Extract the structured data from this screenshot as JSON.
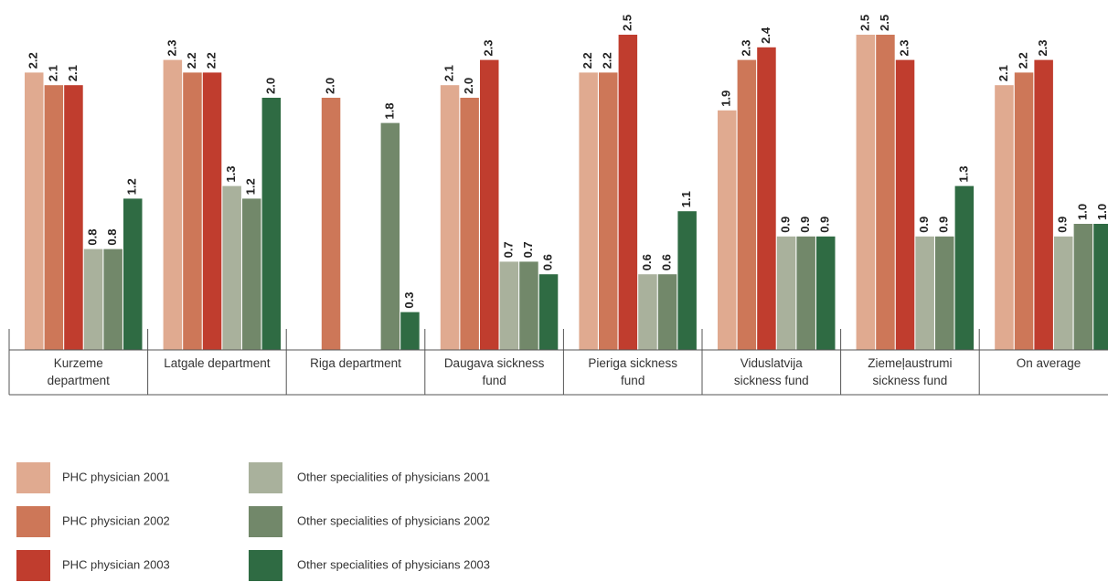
{
  "chart_data": {
    "type": "bar",
    "categories": [
      "Kurzeme department",
      "Latgale department",
      "Riga department",
      "Daugava sickness fund",
      "Pieriga sickness fund",
      "Viduslatvija sickness fund",
      "Ziemeļaustrumi sickness fund",
      "On average"
    ],
    "ylim": [
      0,
      2.5
    ],
    "series": [
      {
        "name": "PHC physician 2001",
        "color": "#e0aa90",
        "values": [
          2.2,
          2.3,
          null,
          2.1,
          2.2,
          1.9,
          2.5,
          2.1
        ],
        "value_labels": [
          "2.2",
          "2.3",
          null,
          "2.1",
          "2.2",
          "1.9",
          "2.5",
          "2.1"
        ]
      },
      {
        "name": "PHC physician 2002",
        "color": "#cd7758",
        "values": [
          2.1,
          2.2,
          2.0,
          2.0,
          2.2,
          2.3,
          2.5,
          2.2
        ],
        "value_labels": [
          "2.1",
          "2.2",
          "2.0",
          "2.0",
          "2.2",
          "2.3",
          "2.5",
          "2.2"
        ]
      },
      {
        "name": "PHC physician 2003",
        "color": "#c03d2e",
        "values": [
          2.1,
          2.2,
          null,
          2.3,
          2.5,
          2.4,
          2.3,
          2.3
        ],
        "value_labels": [
          "2.1",
          "2.2",
          null,
          "2.3",
          "2.5",
          "2.4",
          "2.3",
          "2.3"
        ]
      },
      {
        "name": "Other specialities of physicians 2001",
        "color": "#a9b19c",
        "values": [
          0.8,
          1.3,
          null,
          0.7,
          0.6,
          0.9,
          0.9,
          0.9
        ],
        "value_labels": [
          "0.8",
          "1.3",
          null,
          "0.7",
          "0.6",
          "0.9",
          "0.9",
          "0.9"
        ]
      },
      {
        "name": "Other specialities of physicians 2002",
        "color": "#72886a",
        "values": [
          0.8,
          1.2,
          1.8,
          0.7,
          0.6,
          0.9,
          0.9,
          1.0
        ],
        "value_labels": [
          "0.8",
          "1.2",
          "1.8",
          "0.7",
          "0.6",
          "0.9",
          "0.9",
          "1.0"
        ]
      },
      {
        "name": "Other specialities of physicians 2003",
        "color": "#2f6b43",
        "values": [
          1.2,
          2.0,
          0.3,
          0.6,
          1.1,
          0.9,
          1.3,
          1.0
        ],
        "value_labels": [
          "1.2",
          "2.0",
          "0.3",
          "0.6",
          "1.1",
          "0.9",
          "1.3",
          "1.0"
        ]
      }
    ]
  }
}
